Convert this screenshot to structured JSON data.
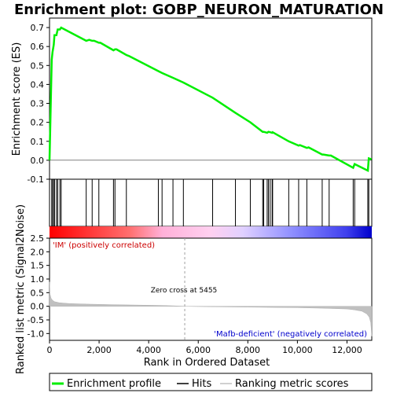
{
  "chart_data": {
    "type": "line",
    "title": "Enrichment plot: GOBP_NEURON_MATURATION",
    "top_panel": {
      "ylabel": "Enrichment score (ES)",
      "ylim": [
        -0.1,
        0.75
      ],
      "yticks": [
        -0.1,
        0.0,
        0.1,
        0.2,
        0.3,
        0.4,
        0.5,
        0.6,
        0.7
      ],
      "ytick_labels": [
        "-0.1",
        "0.0",
        "0.1",
        "0.2",
        "0.3",
        "0.4",
        "0.5",
        "0.6",
        "0.7"
      ],
      "series": [
        {
          "name": "Enrichment profile",
          "color": "#00ee00",
          "x": [
            0,
            90,
            120,
            170,
            200,
            280,
            330,
            420,
            470,
            1480,
            1600,
            1720,
            1800,
            1990,
            2050,
            2580,
            2640,
            2700,
            3100,
            3200,
            4390,
            4540,
            4980,
            5400,
            6580,
            7500,
            8100,
            8600,
            8640,
            8780,
            8830,
            8900,
            8980,
            9000,
            9650,
            10050,
            10100,
            10380,
            10450,
            11000,
            11050,
            11280,
            11350,
            12250,
            12310,
            12840,
            12880,
            12990
          ],
          "y": [
            0.0,
            0.53,
            0.57,
            0.61,
            0.66,
            0.66,
            0.69,
            0.69,
            0.7,
            0.63,
            0.635,
            0.63,
            0.63,
            0.62,
            0.62,
            0.58,
            0.585,
            0.585,
            0.555,
            0.55,
            0.47,
            0.46,
            0.435,
            0.41,
            0.33,
            0.25,
            0.2,
            0.15,
            0.15,
            0.145,
            0.15,
            0.148,
            0.145,
            0.148,
            0.1,
            0.077,
            0.08,
            0.065,
            0.068,
            0.03,
            0.03,
            0.025,
            0.025,
            -0.04,
            -0.02,
            -0.055,
            0.01,
            0.005
          ]
        }
      ]
    },
    "hits": {
      "name": "Hits",
      "x": [
        90,
        120,
        170,
        200,
        280,
        330,
        420,
        470,
        1480,
        1720,
        1990,
        2580,
        2640,
        3100,
        4390,
        4540,
        4980,
        5400,
        6580,
        7500,
        8100,
        8600,
        8640,
        8780,
        8830,
        8900,
        8980,
        9000,
        9650,
        10050,
        10380,
        11000,
        11280,
        12250,
        12310,
        12840,
        12880
      ]
    },
    "bottom_panel": {
      "ylabel": "Ranked list metric (Signal2Noise)",
      "xlabel": "Rank in Ordered Dataset",
      "xlim": [
        0,
        13000
      ],
      "ylim": [
        -1.25,
        2.5
      ],
      "xticks": [
        0,
        2000,
        4000,
        6000,
        8000,
        10000,
        12000
      ],
      "xtick_labels": [
        "0",
        "2,000",
        "4,000",
        "6,000",
        "8,000",
        "10,000",
        "12,000"
      ],
      "yticks": [
        -1.0,
        -0.5,
        0.0,
        0.5,
        1.0,
        1.5,
        2.0,
        2.5
      ],
      "ytick_labels": [
        "-1.0",
        "-0.5",
        "0.0",
        "0.5",
        "1.0",
        "1.5",
        "2.0",
        "2.5"
      ],
      "metric_profile": {
        "name": "Ranking metric scores",
        "color": "#c0c0c0",
        "x": [
          0,
          20,
          60,
          120,
          200,
          400,
          800,
          1500,
          2500,
          3500,
          4500,
          5000,
          5455,
          6000,
          7000,
          8000,
          9000,
          10000,
          11000,
          11500,
          12000,
          12300,
          12600,
          12800,
          12900,
          12960,
          13000
        ],
        "y": [
          0.9,
          0.45,
          0.3,
          0.22,
          0.17,
          0.13,
          0.1,
          0.08,
          0.06,
          0.045,
          0.03,
          0.015,
          0.0,
          -0.01,
          -0.02,
          -0.03,
          -0.04,
          -0.05,
          -0.07,
          -0.085,
          -0.1,
          -0.13,
          -0.18,
          -0.28,
          -0.4,
          -0.6,
          -1.1
        ]
      },
      "zero_cross_label": "Zero cross at 5455",
      "zero_cross": 5455,
      "positive_label": "'IM' (positively correlated)",
      "negative_label": "'Mafb-deficient' (negatively correlated)"
    },
    "legend": [
      {
        "label": "Enrichment profile",
        "color": "#00ee00"
      },
      {
        "label": "Hits",
        "color": "#000000"
      },
      {
        "label": "Ranking metric scores",
        "color": "#c0c0c0"
      }
    ],
    "colors": {
      "profile": "#00ee00",
      "positive": "#ff0000",
      "negative": "#0000ff"
    }
  }
}
